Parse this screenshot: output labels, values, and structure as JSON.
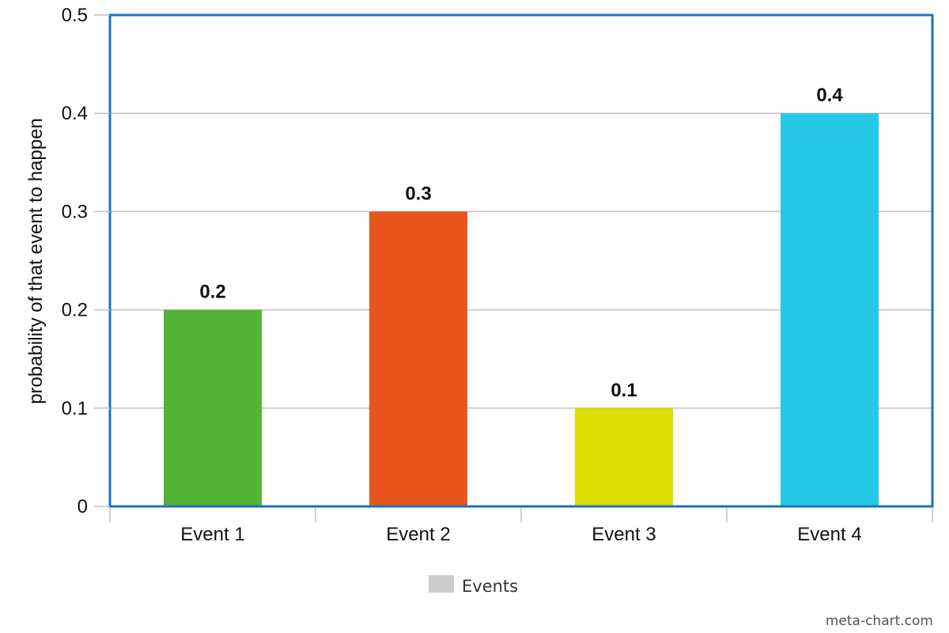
{
  "chart_data": {
    "type": "bar",
    "categories": [
      "Event 1",
      "Event 2",
      "Event 3",
      "Event 4"
    ],
    "series": [
      {
        "name": "Events",
        "values": [
          0.2,
          0.3,
          0.1,
          0.4
        ],
        "colors": [
          "#52b335",
          "#e9551c",
          "#dde000",
          "#25c9e5"
        ]
      }
    ],
    "data_labels": [
      "0.2",
      "0.3",
      "0.1",
      "0.4"
    ],
    "title": "",
    "xlabel": "",
    "ylabel": "probability of that event to happen",
    "ylim": [
      0,
      0.5
    ],
    "yticks": [
      0,
      0.1,
      0.2,
      0.3,
      0.4,
      0.5
    ],
    "ytick_labels": [
      "0",
      "0.1",
      "0.2",
      "0.3",
      "0.4",
      "0.5"
    ],
    "grid": true,
    "legend": {
      "position": "bottom-center",
      "entries": [
        {
          "label": "Events",
          "color": "#cccccc"
        }
      ]
    },
    "frame_color": "#1a73c0",
    "grid_color": "#c0c0c0"
  },
  "watermark": "meta-chart.com"
}
